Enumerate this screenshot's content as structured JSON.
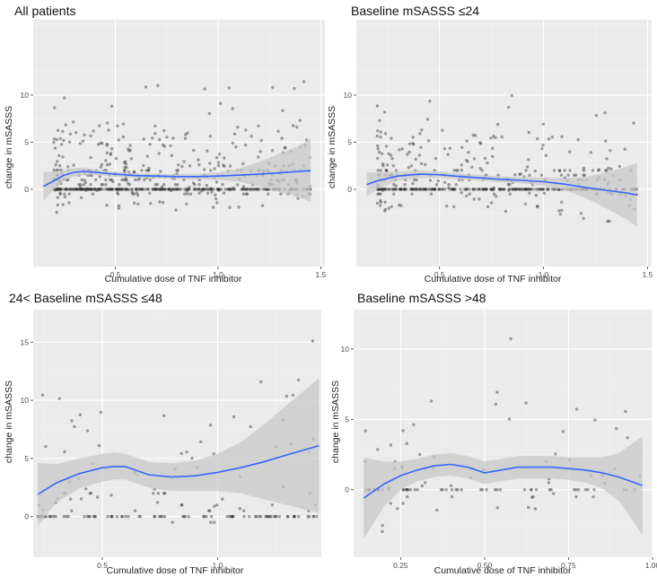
{
  "chart_data": [
    {
      "type": "scatter",
      "title": "All patients",
      "xlabel": "Cumulative dose of TNF inhibitor",
      "ylabel": "change in mSASSS",
      "xlim": [
        0.1,
        1.52
      ],
      "ylim": [
        -8.2,
        18
      ],
      "xticks": [
        0.5,
        1.0,
        1.5
      ],
      "xtick_labels": [
        "0.5",
        "1.0",
        "1.5"
      ],
      "yticks": [
        0,
        5,
        10
      ],
      "ytick_labels": [
        "0",
        "5",
        "10"
      ],
      "grid": true,
      "n_points": 640,
      "point_seed": 11,
      "x_range": [
        0.2,
        1.45
      ],
      "smooth": {
        "x": [
          0.15,
          0.2,
          0.25,
          0.3,
          0.35,
          0.4,
          0.5,
          0.6,
          0.7,
          0.8,
          0.9,
          1.0,
          1.1,
          1.2,
          1.3,
          1.4,
          1.45
        ],
        "y": [
          0.3,
          0.9,
          1.5,
          1.8,
          1.9,
          1.8,
          1.6,
          1.45,
          1.4,
          1.35,
          1.35,
          1.4,
          1.5,
          1.6,
          1.75,
          1.9,
          2.0
        ],
        "lower": [
          -1.2,
          -0.1,
          0.9,
          1.35,
          1.5,
          1.5,
          1.35,
          1.2,
          1.15,
          1.1,
          1.05,
          1.0,
          0.8,
          0.3,
          -0.3,
          -0.9,
          -1.3
        ],
        "upper": [
          1.8,
          1.9,
          2.1,
          2.25,
          2.3,
          2.1,
          1.85,
          1.7,
          1.65,
          1.6,
          1.65,
          1.8,
          2.2,
          2.9,
          3.8,
          4.7,
          5.3
        ]
      }
    },
    {
      "type": "scatter",
      "title": "Baseline mSASSS ≤24",
      "xlabel": "Cumulative dose of TNF inhibitor",
      "ylabel": "change in mSASSS",
      "xlim": [
        0.1,
        1.52
      ],
      "ylim": [
        -8.2,
        18
      ],
      "xticks": [
        0.5,
        1.0,
        1.5
      ],
      "xtick_labels": [
        "0.5",
        "1.0",
        "1.5"
      ],
      "yticks": [
        0,
        5,
        10
      ],
      "ytick_labels": [
        "0",
        "5",
        "10"
      ],
      "grid": true,
      "n_points": 480,
      "point_seed": 23,
      "x_range": [
        0.2,
        1.45
      ],
      "smooth": {
        "x": [
          0.15,
          0.2,
          0.3,
          0.4,
          0.5,
          0.6,
          0.7,
          0.8,
          0.9,
          1.0,
          1.1,
          1.2,
          1.3,
          1.4,
          1.45
        ],
        "y": [
          0.5,
          0.9,
          1.4,
          1.6,
          1.55,
          1.35,
          1.2,
          1.05,
          0.95,
          0.8,
          0.55,
          0.2,
          -0.1,
          -0.4,
          -0.6
        ],
        "lower": [
          -0.8,
          0.0,
          0.9,
          1.2,
          1.2,
          1.05,
          0.9,
          0.75,
          0.6,
          0.35,
          -0.1,
          -0.9,
          -2.0,
          -3.2,
          -4.0
        ],
        "upper": [
          1.8,
          1.8,
          1.9,
          2.0,
          1.9,
          1.65,
          1.5,
          1.35,
          1.3,
          1.25,
          1.2,
          1.3,
          1.8,
          2.4,
          2.8
        ]
      }
    },
    {
      "type": "scatter",
      "title": "24< Baseline mSASSS ≤48",
      "xlabel": "Cumulative dose of TNF inhibitor",
      "ylabel": "change in mSASSS",
      "xlim": [
        0.2,
        1.45
      ],
      "ylim": [
        -3.5,
        17.8
      ],
      "xticks": [
        0.5,
        1.0
      ],
      "xtick_labels": [
        "0.5",
        "1.0"
      ],
      "yticks": [
        0,
        5,
        10,
        15
      ],
      "ytick_labels": [
        "0",
        "5",
        "10",
        "15"
      ],
      "grid": true,
      "n_points": 160,
      "point_seed": 37,
      "x_range": [
        0.22,
        1.44
      ],
      "smooth": {
        "x": [
          0.22,
          0.3,
          0.4,
          0.5,
          0.55,
          0.6,
          0.7,
          0.8,
          0.9,
          1.0,
          1.1,
          1.2,
          1.3,
          1.44
        ],
        "y": [
          1.9,
          2.9,
          3.7,
          4.2,
          4.3,
          4.3,
          3.6,
          3.4,
          3.5,
          3.8,
          4.2,
          4.7,
          5.3,
          6.1
        ],
        "lower": [
          -0.8,
          1.2,
          2.4,
          3.0,
          3.2,
          3.2,
          2.5,
          2.2,
          2.2,
          2.2,
          2.0,
          1.5,
          1.0,
          0.3
        ],
        "upper": [
          4.6,
          4.5,
          5.0,
          5.4,
          5.5,
          5.4,
          4.7,
          4.6,
          4.8,
          5.4,
          6.4,
          7.9,
          9.6,
          11.9
        ]
      }
    },
    {
      "type": "scatter",
      "title": "Baseline mSASSS >48",
      "xlabel": "Cumulative dose of TNF inhibitor",
      "ylabel": "change in mSASSS",
      "xlim": [
        0.11,
        1.0
      ],
      "ylim": [
        -4.8,
        12.8
      ],
      "xticks": [
        0.25,
        0.5,
        0.75,
        1.0
      ],
      "xtick_labels": [
        "0.25",
        "0.50",
        "0.75",
        "1.00"
      ],
      "yticks": [
        0,
        5,
        10
      ],
      "ytick_labels": [
        "0",
        "5",
        "10"
      ],
      "grid": true,
      "n_points": 110,
      "point_seed": 53,
      "x_range": [
        0.14,
        0.97
      ],
      "smooth": {
        "x": [
          0.14,
          0.2,
          0.25,
          0.3,
          0.35,
          0.4,
          0.45,
          0.5,
          0.55,
          0.6,
          0.65,
          0.7,
          0.75,
          0.8,
          0.85,
          0.9,
          0.97
        ],
        "y": [
          -0.6,
          0.4,
          1.0,
          1.4,
          1.7,
          1.8,
          1.6,
          1.2,
          1.4,
          1.6,
          1.6,
          1.6,
          1.5,
          1.4,
          1.2,
          0.9,
          0.3
        ],
        "lower": [
          -3.5,
          -1.2,
          0.0,
          0.6,
          0.9,
          1.0,
          0.8,
          0.4,
          0.6,
          0.8,
          0.8,
          0.8,
          0.7,
          0.5,
          0.1,
          -0.8,
          -3.2
        ],
        "upper": [
          2.3,
          2.0,
          2.0,
          2.2,
          2.5,
          2.6,
          2.4,
          2.0,
          2.2,
          2.4,
          2.4,
          2.4,
          2.3,
          2.3,
          2.3,
          2.6,
          3.8
        ]
      }
    }
  ],
  "colors": {
    "panel_bg": "#ebebeb",
    "grid_major": "#ffffff",
    "grid_minor": "#f4f4f4",
    "point": "#333333",
    "smooth_line": "#3366ff",
    "ribbon": "#c8c8c8"
  }
}
